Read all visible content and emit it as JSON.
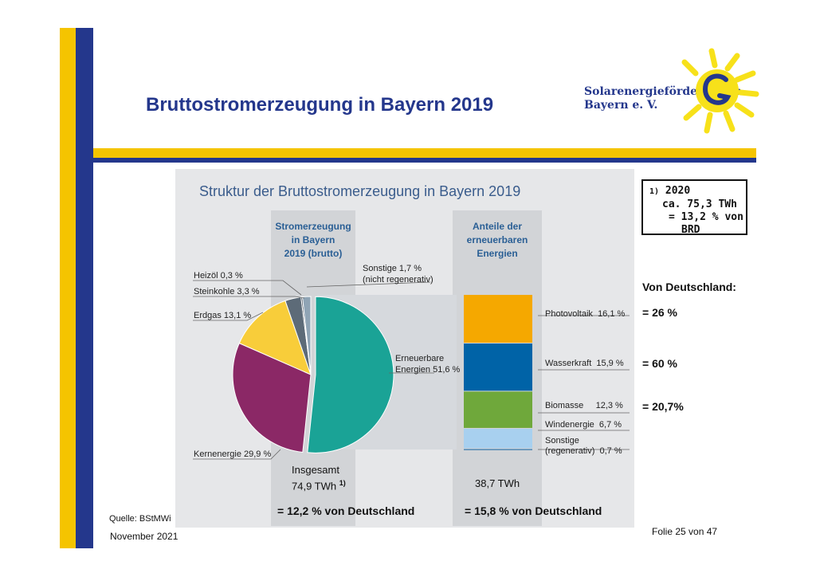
{
  "slide": {
    "title": "Bruttostromerzeugung in Bayern 2019",
    "logo_line1": "Solarenergieförderverein",
    "logo_line2": "Bayern e. V.",
    "source": "Quelle: BStMWi",
    "date": "November 2021",
    "slide_number": "Folie 25 von 47"
  },
  "footnote_box": {
    "marker": "1)",
    "year": "2020",
    "line2": "ca. 75,3 TWh",
    "line3": "= 13,2 % von",
    "line4": "BRD"
  },
  "germany_shares": {
    "heading": "Von Deutschland:",
    "photovoltaik": "= 26 %",
    "wasserkraft": "= 60 %",
    "biomasse": "= 20,7%"
  },
  "colors": {
    "erneuerbare": "#1aa396",
    "kernenergie": "#8b2866",
    "erdgas": "#f8cd3a",
    "steinkohle": "#5d6b78",
    "heizoel": "#1f2d3d",
    "sonstige_nicht_reg": "#8fa4b5",
    "photovoltaik": "#f5a800",
    "wasserkraft": "#0063a7",
    "biomasse": "#6fa83b",
    "windenergie": "#a8d0ef",
    "sonstige_reg": "#5b8fb8",
    "slide_blue": "#24378c",
    "slide_yellow": "#f5c400"
  },
  "chart_data": [
    {
      "type": "pie",
      "title": "Struktur der Bruttostromerzeugung in Bayern 2019",
      "column_heading": [
        "Stromerzeugung",
        "in Bayern",
        "2019 (brutto)"
      ],
      "unit": "%",
      "slices": [
        {
          "label": "Erneuerbare Energien",
          "value": 51.6,
          "text": "51,6 %",
          "label_lines": [
            "Erneuerbare",
            "Energien 51,6 %"
          ]
        },
        {
          "label": "Kernenergie",
          "value": 29.9,
          "text": "Kernenergie 29,9 %"
        },
        {
          "label": "Erdgas",
          "value": 13.1,
          "text": "Erdgas 13,1 %"
        },
        {
          "label": "Steinkohle",
          "value": 3.3,
          "text": "Steinkohle 3,3 %"
        },
        {
          "label": "Heizöl",
          "value": 0.3,
          "text": "Heizöl 0,3 %"
        },
        {
          "label": "Sonstige (nicht regenerativ)",
          "value": 1.7,
          "text": "Sonstige 1,7 %",
          "text2": "(nicht regenerativ)"
        }
      ],
      "total_label": "Insgesamt",
      "total_value": "74,9 TWh",
      "total_footnote": "1)",
      "result": "= 12,2 % von Deutschland"
    },
    {
      "type": "bar",
      "stacked": true,
      "column_heading": [
        "Anteile der",
        "erneuerbaren",
        "Energien"
      ],
      "unit": "%",
      "segments": [
        {
          "label": "Photovoltaik",
          "value": 16.1,
          "text": "16,1 %"
        },
        {
          "label": "Wasserkraft",
          "value": 15.9,
          "text": "15,9 %"
        },
        {
          "label": "Biomasse",
          "value": 12.3,
          "text": "12,3 %"
        },
        {
          "label": "Windenergie",
          "value": 6.7,
          "text": "6,7 %"
        },
        {
          "label": "Sonstige (regenerativ)",
          "value": 0.7,
          "text": "0,7 %",
          "label_lines": [
            "Sonstige",
            "(regenerativ)"
          ]
        }
      ],
      "total_value": "38,7 TWh",
      "result": "= 15,8 % von Deutschland"
    }
  ]
}
